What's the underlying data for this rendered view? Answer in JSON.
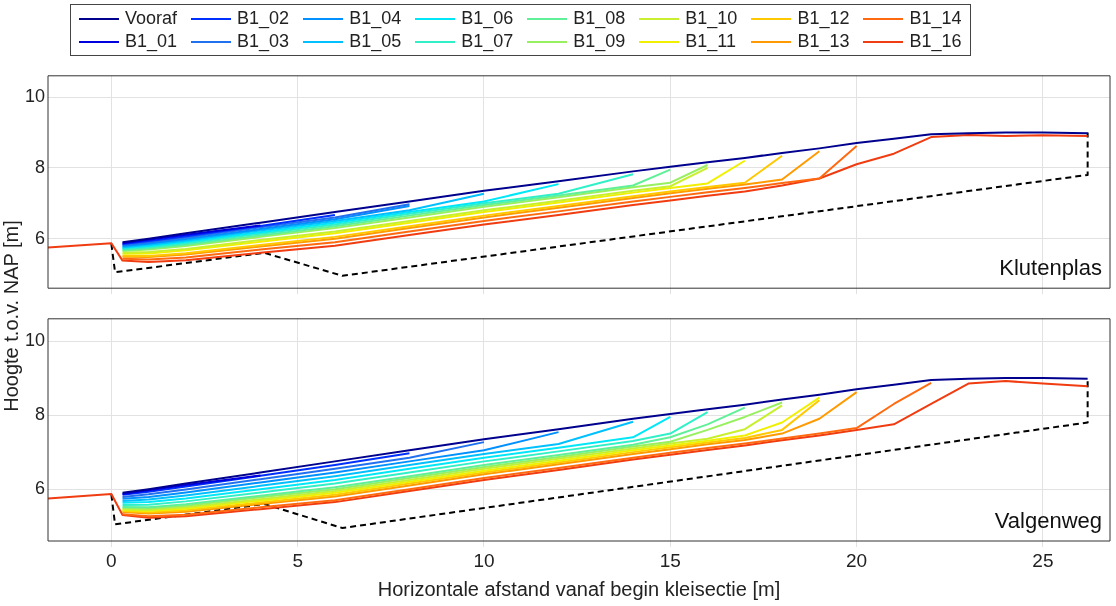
{
  "chart_data": [
    {
      "type": "line",
      "ylabel": "Hoogte t.o.v. NAP [m]",
      "legend": "top",
      "grid": true,
      "tick_labels": "y",
      "xlim": [
        -1.7,
        26.8
      ],
      "xticks": [
        0,
        5,
        10,
        15,
        20,
        25
      ],
      "ylim": [
        4.6,
        10.6
      ],
      "yticks": [
        6,
        8,
        10
      ],
      "annotations": [
        "Klutenplas"
      ],
      "x": [
        -1.7,
        0,
        0.3,
        1,
        2,
        4,
        6,
        8,
        10,
        12,
        14,
        15,
        16,
        17,
        18,
        19,
        20,
        21,
        22,
        23,
        24,
        25,
        26.2
      ],
      "series": [
        {
          "name": "Vooraf",
          "color": "#00008f",
          "values": [
            null,
            null,
            5.9,
            6.0,
            6.15,
            6.45,
            6.75,
            7.05,
            7.35,
            7.62,
            7.9,
            8.03,
            8.16,
            8.28,
            8.42,
            8.55,
            8.7,
            8.82,
            8.95,
            8.98,
            9.0,
            9.0,
            8.98
          ]
        },
        {
          "name": "B1_01",
          "color": "#0000df",
          "values": [
            null,
            null,
            5.87,
            5.97,
            6.11,
            6.37,
            null,
            null,
            null,
            null,
            null,
            null,
            null,
            null,
            null,
            null,
            null,
            null,
            null,
            null,
            null,
            null,
            null
          ]
        },
        {
          "name": "B1_02",
          "color": "#0030ff",
          "values": [
            null,
            null,
            5.85,
            5.93,
            6.07,
            6.36,
            6.67,
            null,
            null,
            null,
            null,
            null,
            null,
            null,
            null,
            null,
            null,
            null,
            null,
            null,
            null,
            null,
            null
          ]
        },
        {
          "name": "B1_03",
          "color": "#2070f0",
          "values": [
            null,
            null,
            5.82,
            5.9,
            6.03,
            6.32,
            6.6,
            6.97,
            null,
            null,
            null,
            null,
            null,
            null,
            null,
            null,
            null,
            null,
            null,
            null,
            null,
            null,
            null
          ]
        },
        {
          "name": "B1_04",
          "color": "#0090ff",
          "values": [
            null,
            null,
            5.79,
            5.86,
            5.99,
            6.27,
            6.55,
            6.92,
            null,
            null,
            null,
            null,
            null,
            null,
            null,
            null,
            null,
            null,
            null,
            null,
            null,
            null,
            null
          ]
        },
        {
          "name": "B1_05",
          "color": "#00c0ff",
          "values": [
            null,
            null,
            5.76,
            5.83,
            5.95,
            6.23,
            6.5,
            6.8,
            7.27,
            null,
            null,
            null,
            null,
            null,
            null,
            null,
            null,
            null,
            null,
            null,
            null,
            null,
            null
          ]
        },
        {
          "name": "B1_06",
          "color": "#00e8f8",
          "values": [
            null,
            null,
            5.74,
            5.79,
            5.91,
            6.18,
            6.45,
            6.75,
            7.05,
            7.54,
            null,
            null,
            null,
            null,
            null,
            null,
            null,
            null,
            null,
            null,
            null,
            null,
            null
          ]
        },
        {
          "name": "B1_07",
          "color": "#30f0c8",
          "values": [
            null,
            null,
            5.71,
            5.76,
            5.87,
            6.14,
            6.4,
            6.7,
            7.0,
            7.27,
            7.82,
            null,
            null,
            null,
            null,
            null,
            null,
            null,
            null,
            null,
            null,
            null,
            null
          ]
        },
        {
          "name": "B1_08",
          "color": "#60f098",
          "values": [
            null,
            null,
            5.68,
            5.72,
            5.83,
            6.09,
            6.35,
            6.65,
            6.95,
            7.22,
            7.5,
            7.95,
            null,
            null,
            null,
            null,
            null,
            null,
            null,
            null,
            null,
            null,
            null
          ]
        },
        {
          "name": "B1_09",
          "color": "#98f060",
          "values": [
            null,
            null,
            5.65,
            5.69,
            5.79,
            6.05,
            6.3,
            6.6,
            6.9,
            7.17,
            7.45,
            7.58,
            8.08,
            null,
            null,
            null,
            null,
            null,
            null,
            null,
            null,
            null,
            null
          ]
        },
        {
          "name": "B1_10",
          "color": "#c8f030",
          "values": [
            null,
            null,
            5.6,
            5.62,
            5.71,
            5.96,
            6.2,
            6.5,
            6.8,
            7.07,
            7.35,
            7.48,
            8.0,
            null,
            null,
            null,
            null,
            null,
            null,
            null,
            null,
            null,
            null
          ]
        },
        {
          "name": "B1_11",
          "color": "#f0f000",
          "values": [
            null,
            null,
            5.57,
            5.58,
            5.67,
            5.91,
            6.15,
            6.45,
            6.75,
            7.02,
            7.3,
            7.43,
            7.56,
            8.2,
            null,
            null,
            null,
            null,
            null,
            null,
            null,
            null,
            null
          ]
        },
        {
          "name": "B1_12",
          "color": "#ffc800",
          "values": [
            null,
            null,
            5.52,
            5.51,
            5.59,
            5.82,
            6.05,
            6.35,
            6.65,
            6.92,
            7.2,
            7.33,
            7.46,
            7.58,
            8.34,
            null,
            null,
            null,
            null,
            null,
            null,
            null,
            null
          ]
        },
        {
          "name": "B1_13",
          "color": "#ff9a00",
          "values": [
            null,
            null,
            5.49,
            5.48,
            5.55,
            5.78,
            6.0,
            6.3,
            6.6,
            6.87,
            7.15,
            7.28,
            7.41,
            7.53,
            7.67,
            8.47,
            null,
            null,
            null,
            null,
            null,
            null,
            null
          ]
        },
        {
          "name": "B1_14",
          "color": "#ff6a10",
          "values": [
            null,
            null,
            5.43,
            5.41,
            5.47,
            5.69,
            5.9,
            6.2,
            6.5,
            6.77,
            7.05,
            7.18,
            7.31,
            7.43,
            7.57,
            7.7,
            8.62,
            null,
            null,
            null,
            null,
            null,
            null
          ]
        },
        {
          "name": "B1_16",
          "color": "#f03c10",
          "values": [
            5.75,
            5.87,
            5.38,
            5.34,
            5.39,
            5.6,
            5.8,
            6.1,
            6.4,
            6.67,
            6.95,
            7.08,
            7.21,
            7.33,
            7.5,
            7.7,
            8.1,
            8.4,
            8.87,
            8.93,
            8.9,
            8.92,
            8.9
          ]
        },
        {
          "color": "#000000",
          "line_style": "dashed",
          "x": [
            0,
            0.1,
            4.1,
            6.2,
            26.2,
            26.2
          ],
          "values": [
            5.85,
            5.05,
            5.6,
            4.95,
            7.8,
            9.0
          ]
        }
      ]
    },
    {
      "type": "line",
      "xlabel": "Horizontale afstand vanaf begin kleisectie [m]",
      "grid": true,
      "xlim": [
        -1.7,
        26.8
      ],
      "xticks": [
        0,
        5,
        10,
        15,
        20,
        25
      ],
      "ylim": [
        4.6,
        10.6
      ],
      "yticks": [
        6,
        8,
        10
      ],
      "annotations": [
        "Valgenweg"
      ],
      "x": [
        -1.7,
        0,
        0.3,
        1,
        2,
        4,
        6,
        8,
        10,
        12,
        14,
        15,
        16,
        17,
        18,
        19,
        20,
        21,
        22,
        23,
        24,
        25,
        26.2
      ],
      "series": [
        {
          "color": "#00008f",
          "values": [
            null,
            null,
            5.9,
            6.0,
            6.15,
            6.45,
            6.75,
            7.05,
            7.35,
            7.62,
            7.9,
            8.03,
            8.16,
            8.28,
            8.42,
            8.55,
            8.7,
            8.82,
            8.95,
            8.98,
            9.0,
            9.0,
            8.98
          ]
        },
        {
          "color": "#0000df",
          "values": [
            null,
            null,
            5.87,
            5.97,
            6.11,
            6.37,
            null,
            null,
            null,
            null,
            null,
            null,
            null,
            null,
            null,
            null,
            null,
            null,
            null,
            null,
            null,
            null,
            null
          ]
        },
        {
          "color": "#0030ff",
          "values": [
            null,
            null,
            5.85,
            5.93,
            6.07,
            6.36,
            6.65,
            6.97,
            null,
            null,
            null,
            null,
            null,
            null,
            null,
            null,
            null,
            null,
            null,
            null,
            null,
            null,
            null
          ]
        },
        {
          "color": "#2070f0",
          "values": [
            null,
            null,
            5.79,
            5.86,
            5.99,
            6.27,
            6.55,
            6.85,
            7.27,
            null,
            null,
            null,
            null,
            null,
            null,
            null,
            null,
            null,
            null,
            null,
            null,
            null,
            null
          ]
        },
        {
          "color": "#0090ff",
          "values": [
            null,
            null,
            5.74,
            5.79,
            5.91,
            6.18,
            6.45,
            6.75,
            7.05,
            7.54,
            null,
            null,
            null,
            null,
            null,
            null,
            null,
            null,
            null,
            null,
            null,
            null,
            null
          ]
        },
        {
          "color": "#00c0ff",
          "values": [
            null,
            null,
            5.68,
            5.72,
            5.83,
            6.09,
            6.35,
            6.65,
            6.95,
            7.22,
            7.82,
            null,
            null,
            null,
            null,
            null,
            null,
            null,
            null,
            null,
            null,
            null,
            null
          ]
        },
        {
          "color": "#00e8f8",
          "values": [
            null,
            null,
            5.63,
            5.65,
            5.75,
            6.0,
            6.25,
            6.55,
            6.85,
            7.12,
            7.4,
            7.95,
            null,
            null,
            null,
            null,
            null,
            null,
            null,
            null,
            null,
            null,
            null
          ]
        },
        {
          "color": "#30f0c8",
          "values": [
            null,
            null,
            5.57,
            5.58,
            5.67,
            5.91,
            6.15,
            6.45,
            6.75,
            7.02,
            7.3,
            7.5,
            8.08,
            null,
            null,
            null,
            null,
            null,
            null,
            null,
            null,
            null,
            null
          ]
        },
        {
          "color": "#60f098",
          "values": [
            null,
            null,
            5.52,
            5.51,
            5.59,
            5.82,
            6.05,
            6.35,
            6.65,
            6.92,
            7.2,
            7.4,
            7.75,
            8.2,
            null,
            null,
            null,
            null,
            null,
            null,
            null,
            null,
            null
          ]
        },
        {
          "color": "#98f060",
          "values": [
            null,
            null,
            5.49,
            5.48,
            5.55,
            5.78,
            6.0,
            6.3,
            6.6,
            6.87,
            7.15,
            7.28,
            7.6,
            7.95,
            8.34,
            null,
            null,
            null,
            null,
            null,
            null,
            null,
            null
          ]
        },
        {
          "color": "#c8f030",
          "values": [
            null,
            null,
            5.46,
            5.44,
            5.51,
            5.73,
            5.95,
            6.25,
            6.55,
            6.82,
            7.1,
            7.23,
            7.36,
            7.62,
            8.26,
            null,
            null,
            null,
            null,
            null,
            null,
            null,
            null
          ]
        },
        {
          "color": "#f0f000",
          "values": [
            null,
            null,
            5.43,
            5.41,
            5.47,
            5.69,
            5.9,
            6.2,
            6.5,
            6.77,
            7.05,
            7.18,
            7.31,
            7.45,
            7.8,
            8.47,
            null,
            null,
            null,
            null,
            null,
            null,
            null
          ]
        },
        {
          "color": "#ffc800",
          "values": [
            null,
            null,
            5.41,
            5.37,
            5.43,
            5.64,
            5.85,
            6.15,
            6.45,
            6.72,
            7.0,
            7.13,
            7.26,
            7.38,
            7.6,
            8.4,
            null,
            null,
            null,
            null,
            null,
            null,
            null
          ]
        },
        {
          "color": "#ff9a00",
          "values": [
            null,
            null,
            5.38,
            5.34,
            5.39,
            5.6,
            5.8,
            6.1,
            6.4,
            6.67,
            6.95,
            7.08,
            7.21,
            7.33,
            7.5,
            7.9,
            8.62,
            null,
            null,
            null,
            null,
            null,
            null
          ]
        },
        {
          "color": "#ff6a10",
          "values": [
            null,
            null,
            5.32,
            5.27,
            5.31,
            5.51,
            5.7,
            6.0,
            6.3,
            6.57,
            6.85,
            6.98,
            7.11,
            7.23,
            7.37,
            7.5,
            7.65,
            8.3,
            8.87,
            null,
            null,
            null,
            null
          ]
        },
        {
          "color": "#f03c10",
          "values": [
            5.75,
            5.87,
            5.3,
            5.23,
            5.27,
            5.46,
            5.65,
            5.95,
            6.25,
            6.52,
            6.8,
            6.93,
            7.06,
            7.18,
            7.32,
            7.45,
            7.6,
            7.75,
            8.3,
            8.85,
            8.92,
            8.85,
            8.78
          ]
        },
        {
          "color": "#000000",
          "line_style": "dashed",
          "x": [
            0,
            0.1,
            4.1,
            6.2,
            26.2,
            26.2
          ],
          "values": [
            5.85,
            5.05,
            5.6,
            4.95,
            7.8,
            9.0
          ]
        }
      ]
    }
  ]
}
